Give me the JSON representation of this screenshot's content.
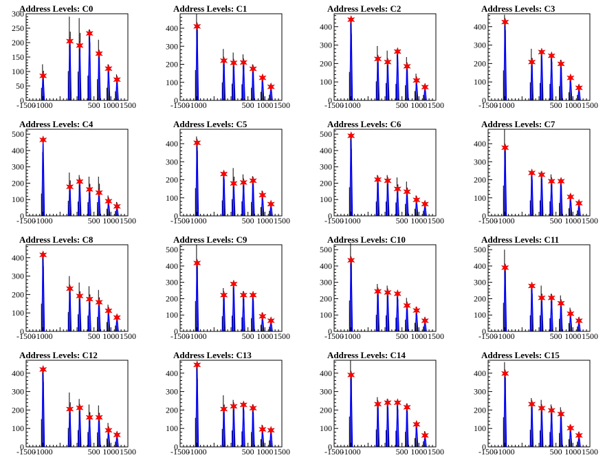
{
  "colors": {
    "histogram": "#000000",
    "fit": "#0000ff",
    "marker": "#ff0000",
    "frame": "#000000"
  },
  "chart_data": [
    {
      "type": "bar",
      "title": "Address Levels: C0",
      "xlim": [
        -1500,
        1500
      ],
      "ylim": [
        0,
        300
      ],
      "yticks": [
        0,
        50,
        100,
        150,
        200,
        250,
        300
      ],
      "xticks": [
        -1500,
        -1000,
        500,
        1000,
        1500
      ],
      "xtick_labels": [
        "-1500",
        "-1000",
        "500",
        "1000",
        "1500"
      ],
      "peaks": [
        {
          "x": -1000,
          "y": 85,
          "hist": 125
        },
        {
          "x": -210,
          "y": 205,
          "hist": 290
        },
        {
          "x": 80,
          "y": 190,
          "hist": 285
        },
        {
          "x": 370,
          "y": 232,
          "hist": 245
        },
        {
          "x": 650,
          "y": 162,
          "hist": 210
        },
        {
          "x": 930,
          "y": 110,
          "hist": 125
        },
        {
          "x": 1180,
          "y": 72,
          "hist": 90
        }
      ]
    },
    {
      "type": "bar",
      "title": "Address Levels: C1",
      "xlim": [
        -1500,
        1500
      ],
      "ylim": [
        0,
        480
      ],
      "yticks": [
        0,
        100,
        200,
        300,
        400
      ],
      "xticks": [
        -1500,
        -1000,
        500,
        1000,
        1500
      ],
      "xtick_labels": [
        "-1500",
        "-1000",
        "500",
        "1000",
        "1500"
      ],
      "peaks": [
        {
          "x": -1000,
          "y": 410,
          "hist": 480
        },
        {
          "x": -210,
          "y": 220,
          "hist": 285
        },
        {
          "x": 80,
          "y": 208,
          "hist": 265
        },
        {
          "x": 370,
          "y": 210,
          "hist": 255
        },
        {
          "x": 650,
          "y": 175,
          "hist": 200
        },
        {
          "x": 930,
          "y": 125,
          "hist": 135
        },
        {
          "x": 1180,
          "y": 75,
          "hist": 90
        }
      ]
    },
    {
      "type": "bar",
      "title": "Address Levels: C2",
      "xlim": [
        -1500,
        1500
      ],
      "ylim": [
        0,
        470
      ],
      "yticks": [
        0,
        100,
        200,
        300,
        400
      ],
      "xticks": [
        -1500,
        -1000,
        500,
        1000,
        1500
      ],
      "xtick_labels": [
        "-1500",
        "-1000",
        "500",
        "1000",
        "1500"
      ],
      "peaks": [
        {
          "x": -1000,
          "y": 438,
          "hist": 440
        },
        {
          "x": -210,
          "y": 225,
          "hist": 295
        },
        {
          "x": 80,
          "y": 208,
          "hist": 270
        },
        {
          "x": 370,
          "y": 265,
          "hist": 255
        },
        {
          "x": 650,
          "y": 185,
          "hist": 235
        },
        {
          "x": 930,
          "y": 108,
          "hist": 145
        },
        {
          "x": 1180,
          "y": 72,
          "hist": 85
        }
      ]
    },
    {
      "type": "bar",
      "title": "Address Levels: C3",
      "xlim": [
        -1500,
        1500
      ],
      "ylim": [
        0,
        470
      ],
      "yticks": [
        0,
        100,
        200,
        300,
        400
      ],
      "xticks": [
        -1500,
        -1000,
        500,
        1000,
        1500
      ],
      "xtick_labels": [
        "-1500",
        "-1000",
        "500",
        "1000",
        "1500"
      ],
      "peaks": [
        {
          "x": -1000,
          "y": 425,
          "hist": 465
        },
        {
          "x": -210,
          "y": 208,
          "hist": 280
        },
        {
          "x": 80,
          "y": 262,
          "hist": 270
        },
        {
          "x": 370,
          "y": 242,
          "hist": 255
        },
        {
          "x": 650,
          "y": 198,
          "hist": 220
        },
        {
          "x": 930,
          "y": 122,
          "hist": 125
        },
        {
          "x": 1180,
          "y": 68,
          "hist": 85
        }
      ]
    },
    {
      "type": "bar",
      "title": "Address Levels: C4",
      "xlim": [
        -1500,
        1500
      ],
      "ylim": [
        0,
        530
      ],
      "yticks": [
        0,
        100,
        200,
        300,
        400,
        500
      ],
      "xticks": [
        -1500,
        -1000,
        500,
        1000,
        1500
      ],
      "xtick_labels": [
        "-1500",
        "-1000",
        "500",
        "1000",
        "1500"
      ],
      "peaks": [
        {
          "x": -1000,
          "y": 465,
          "hist": 390
        },
        {
          "x": -210,
          "y": 178,
          "hist": 265
        },
        {
          "x": 80,
          "y": 210,
          "hist": 250
        },
        {
          "x": 370,
          "y": 162,
          "hist": 240
        },
        {
          "x": 650,
          "y": 142,
          "hist": 240
        },
        {
          "x": 930,
          "y": 90,
          "hist": 125
        },
        {
          "x": 1180,
          "y": 58,
          "hist": 85
        }
      ]
    },
    {
      "type": "bar",
      "title": "Address Levels: C5",
      "xlim": [
        -1500,
        1500
      ],
      "ylim": [
        0,
        480
      ],
      "yticks": [
        0,
        100,
        200,
        300,
        400
      ],
      "xticks": [
        -1500,
        -1000,
        500,
        1000,
        1500
      ],
      "xtick_labels": [
        "-1500",
        "-1000",
        "500",
        "1000",
        "1500"
      ],
      "peaks": [
        {
          "x": -1000,
          "y": 405,
          "hist": 440
        },
        {
          "x": -210,
          "y": 232,
          "hist": 245
        },
        {
          "x": 80,
          "y": 180,
          "hist": 265
        },
        {
          "x": 370,
          "y": 185,
          "hist": 230
        },
        {
          "x": 650,
          "y": 195,
          "hist": 220
        },
        {
          "x": 930,
          "y": 115,
          "hist": 140
        },
        {
          "x": 1180,
          "y": 65,
          "hist": 80
        }
      ]
    },
    {
      "type": "bar",
      "title": "Address Levels: C6",
      "xlim": [
        -1500,
        1500
      ],
      "ylim": [
        0,
        530
      ],
      "yticks": [
        0,
        100,
        200,
        300,
        400,
        500
      ],
      "xticks": [
        -1500,
        -1000,
        500,
        1000,
        1500
      ],
      "xtick_labels": [
        "-1500",
        "-1000",
        "500",
        "1000",
        "1500"
      ],
      "peaks": [
        {
          "x": -1000,
          "y": 490,
          "hist": 500
        },
        {
          "x": -210,
          "y": 222,
          "hist": 250
        },
        {
          "x": 80,
          "y": 215,
          "hist": 250
        },
        {
          "x": 370,
          "y": 165,
          "hist": 235
        },
        {
          "x": 650,
          "y": 148,
          "hist": 210
        },
        {
          "x": 930,
          "y": 98,
          "hist": 125
        },
        {
          "x": 1180,
          "y": 72,
          "hist": 90
        }
      ]
    },
    {
      "type": "bar",
      "title": "Address Levels: C7",
      "xlim": [
        -1500,
        1500
      ],
      "ylim": [
        0,
        480
      ],
      "yticks": [
        0,
        100,
        200,
        300,
        400
      ],
      "xticks": [
        -1500,
        -1000,
        500,
        1000,
        1500
      ],
      "xtick_labels": [
        "-1500",
        "-1000",
        "500",
        "1000",
        "1500"
      ],
      "peaks": [
        {
          "x": -1000,
          "y": 378,
          "hist": 480
        },
        {
          "x": -210,
          "y": 238,
          "hist": 245
        },
        {
          "x": 80,
          "y": 228,
          "hist": 245
        },
        {
          "x": 370,
          "y": 192,
          "hist": 230
        },
        {
          "x": 650,
          "y": 192,
          "hist": 205
        },
        {
          "x": 930,
          "y": 105,
          "hist": 120
        },
        {
          "x": 1180,
          "y": 70,
          "hist": 85
        }
      ]
    },
    {
      "type": "bar",
      "title": "Address Levels: C8",
      "xlim": [
        -1500,
        1500
      ],
      "ylim": [
        0,
        470
      ],
      "yticks": [
        0,
        100,
        200,
        300,
        400
      ],
      "xticks": [
        -1500,
        -1000,
        500,
        1000,
        1500
      ],
      "xtick_labels": [
        "-1500",
        "-1000",
        "500",
        "1000",
        "1500"
      ],
      "peaks": [
        {
          "x": -1000,
          "y": 415,
          "hist": 430
        },
        {
          "x": -210,
          "y": 232,
          "hist": 300
        },
        {
          "x": 80,
          "y": 192,
          "hist": 265
        },
        {
          "x": 370,
          "y": 175,
          "hist": 245
        },
        {
          "x": 650,
          "y": 158,
          "hist": 225
        },
        {
          "x": 930,
          "y": 112,
          "hist": 145
        },
        {
          "x": 1180,
          "y": 75,
          "hist": 90
        }
      ]
    },
    {
      "type": "bar",
      "title": "Address Levels: C9",
      "xlim": [
        -1500,
        1500
      ],
      "ylim": [
        0,
        530
      ],
      "yticks": [
        0,
        100,
        200,
        300,
        400,
        500
      ],
      "xticks": [
        -1500,
        -1000,
        500,
        1000,
        1500
      ],
      "xtick_labels": [
        "-1500",
        "-1000",
        "500",
        "1000",
        "1500"
      ],
      "peaks": [
        {
          "x": -1000,
          "y": 418,
          "hist": 530
        },
        {
          "x": -210,
          "y": 222,
          "hist": 265
        },
        {
          "x": 80,
          "y": 290,
          "hist": 275
        },
        {
          "x": 370,
          "y": 222,
          "hist": 245
        },
        {
          "x": 650,
          "y": 222,
          "hist": 230
        },
        {
          "x": 930,
          "y": 92,
          "hist": 115
        },
        {
          "x": 1180,
          "y": 65,
          "hist": 80
        }
      ]
    },
    {
      "type": "bar",
      "title": "Address Levels: C10",
      "xlim": [
        -1500,
        1500
      ],
      "ylim": [
        0,
        530
      ],
      "yticks": [
        0,
        100,
        200,
        300,
        400,
        500
      ],
      "xticks": [
        -1500,
        -1000,
        500,
        1000,
        1500
      ],
      "xtick_labels": [
        "-1500",
        "-1000",
        "500",
        "1000",
        "1500"
      ],
      "peaks": [
        {
          "x": -1000,
          "y": 435,
          "hist": 540
        },
        {
          "x": -210,
          "y": 245,
          "hist": 290
        },
        {
          "x": 80,
          "y": 238,
          "hist": 280
        },
        {
          "x": 370,
          "y": 230,
          "hist": 240
        },
        {
          "x": 650,
          "y": 158,
          "hist": 205
        },
        {
          "x": 930,
          "y": 128,
          "hist": 150
        },
        {
          "x": 1180,
          "y": 65,
          "hist": 85
        }
      ]
    },
    {
      "type": "bar",
      "title": "Address Levels: C11",
      "xlim": [
        -1500,
        1500
      ],
      "ylim": [
        0,
        530
      ],
      "yticks": [
        0,
        100,
        200,
        300,
        400,
        500
      ],
      "xticks": [
        -1500,
        -1000,
        500,
        1000,
        1500
      ],
      "xtick_labels": [
        "-1500",
        "-1000",
        "500",
        "1000",
        "1500"
      ],
      "peaks": [
        {
          "x": -1000,
          "y": 390,
          "hist": 500
        },
        {
          "x": -210,
          "y": 278,
          "hist": 280
        },
        {
          "x": 80,
          "y": 205,
          "hist": 280
        },
        {
          "x": 370,
          "y": 205,
          "hist": 230
        },
        {
          "x": 650,
          "y": 172,
          "hist": 220
        },
        {
          "x": 930,
          "y": 108,
          "hist": 145
        },
        {
          "x": 1180,
          "y": 65,
          "hist": 85
        }
      ]
    },
    {
      "type": "bar",
      "title": "Address Levels: C12",
      "xlim": [
        -1500,
        1500
      ],
      "ylim": [
        0,
        470
      ],
      "yticks": [
        0,
        100,
        200,
        300,
        400
      ],
      "xticks": [
        -1500,
        -1000,
        500,
        1000,
        1500
      ],
      "xtick_labels": [
        "-1500",
        "-1000",
        "500",
        "1000",
        "1500"
      ],
      "peaks": [
        {
          "x": -1000,
          "y": 420,
          "hist": 430
        },
        {
          "x": -210,
          "y": 205,
          "hist": 295
        },
        {
          "x": 80,
          "y": 212,
          "hist": 260
        },
        {
          "x": 370,
          "y": 160,
          "hist": 230
        },
        {
          "x": 650,
          "y": 160,
          "hist": 225
        },
        {
          "x": 930,
          "y": 90,
          "hist": 130
        },
        {
          "x": 1180,
          "y": 65,
          "hist": 80
        }
      ]
    },
    {
      "type": "bar",
      "title": "Address Levels: C13",
      "xlim": [
        -1500,
        1500
      ],
      "ylim": [
        0,
        470
      ],
      "yticks": [
        0,
        100,
        200,
        300,
        400
      ],
      "xticks": [
        -1500,
        -1000,
        500,
        1000,
        1500
      ],
      "xtick_labels": [
        "-1500",
        "-1000",
        "500",
        "1000",
        "1500"
      ],
      "peaks": [
        {
          "x": -1000,
          "y": 445,
          "hist": 450
        },
        {
          "x": -210,
          "y": 205,
          "hist": 280
        },
        {
          "x": 80,
          "y": 220,
          "hist": 255
        },
        {
          "x": 370,
          "y": 228,
          "hist": 240
        },
        {
          "x": 650,
          "y": 210,
          "hist": 230
        },
        {
          "x": 930,
          "y": 95,
          "hist": 120
        },
        {
          "x": 1180,
          "y": 90,
          "hist": 100
        }
      ]
    },
    {
      "type": "bar",
      "title": "Address Levels: C14",
      "xlim": [
        -1500,
        1500
      ],
      "ylim": [
        0,
        470
      ],
      "yticks": [
        0,
        100,
        200,
        300,
        400
      ],
      "xticks": [
        -1500,
        -1000,
        500,
        1000,
        1500
      ],
      "xtick_labels": [
        "-1500",
        "-1000",
        "500",
        "1000",
        "1500"
      ],
      "peaks": [
        {
          "x": -1000,
          "y": 390,
          "hist": 470
        },
        {
          "x": -210,
          "y": 232,
          "hist": 270
        },
        {
          "x": 80,
          "y": 240,
          "hist": 260
        },
        {
          "x": 370,
          "y": 240,
          "hist": 250
        },
        {
          "x": 650,
          "y": 215,
          "hist": 235
        },
        {
          "x": 930,
          "y": 122,
          "hist": 135
        },
        {
          "x": 1180,
          "y": 62,
          "hist": 85
        }
      ]
    },
    {
      "type": "bar",
      "title": "Address Levels: C15",
      "xlim": [
        -1500,
        1500
      ],
      "ylim": [
        0,
        470
      ],
      "yticks": [
        0,
        100,
        200,
        300,
        400
      ],
      "xticks": [
        -1500,
        -1000,
        500,
        1000,
        1500
      ],
      "xtick_labels": [
        "-1500",
        "-1000",
        "500",
        "1000",
        "1500"
      ],
      "peaks": [
        {
          "x": -1000,
          "y": 398,
          "hist": 460
        },
        {
          "x": -210,
          "y": 232,
          "hist": 265
        },
        {
          "x": 80,
          "y": 210,
          "hist": 255
        },
        {
          "x": 370,
          "y": 198,
          "hist": 230
        },
        {
          "x": 650,
          "y": 178,
          "hist": 215
        },
        {
          "x": 930,
          "y": 102,
          "hist": 120
        },
        {
          "x": 1180,
          "y": 62,
          "hist": 80
        }
      ]
    }
  ]
}
